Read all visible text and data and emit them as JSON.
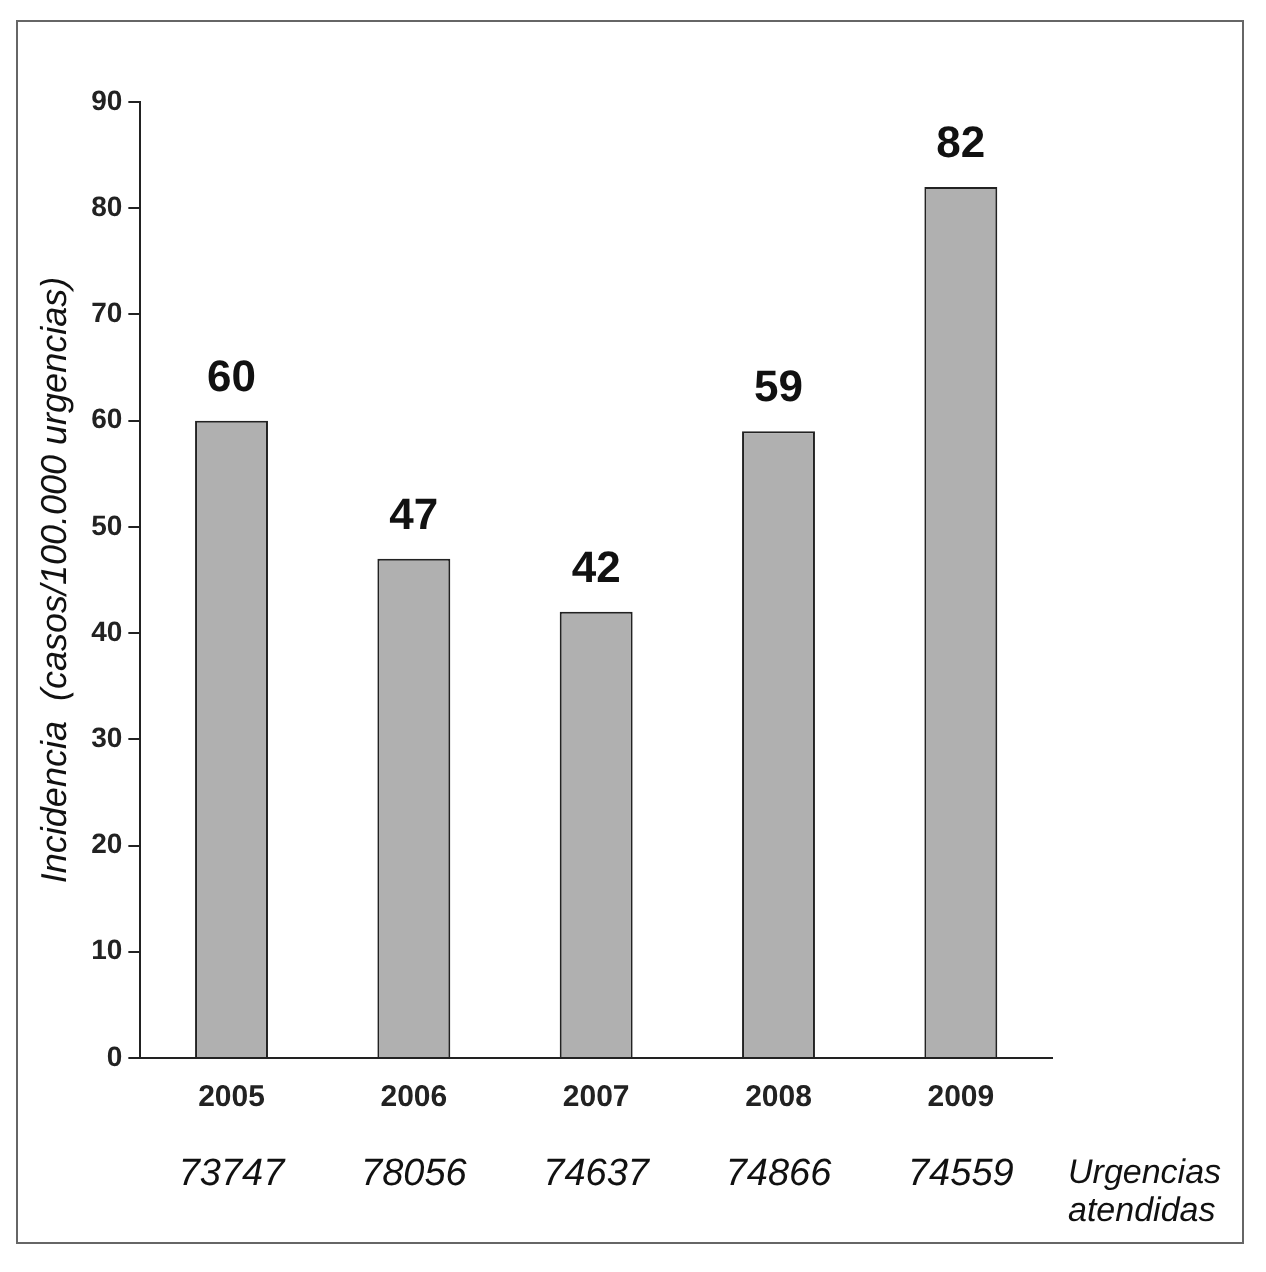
{
  "chart_data": {
    "type": "bar",
    "ylabel": "Incidencia  (casos/100.000 urgencias)",
    "categories": [
      "2005",
      "2006",
      "2007",
      "2008",
      "2009"
    ],
    "values": [
      60,
      47,
      42,
      59,
      82
    ],
    "color": "#b0b0b0",
    "ylim": [
      0,
      90
    ],
    "yticks": [
      0,
      10,
      20,
      30,
      40,
      50,
      60,
      70,
      80,
      90
    ],
    "grid": false,
    "data_labels": true,
    "annotations": [
      "73747",
      "78056",
      "74637",
      "74866",
      "74559",
      "Urgencias atendidas"
    ]
  }
}
